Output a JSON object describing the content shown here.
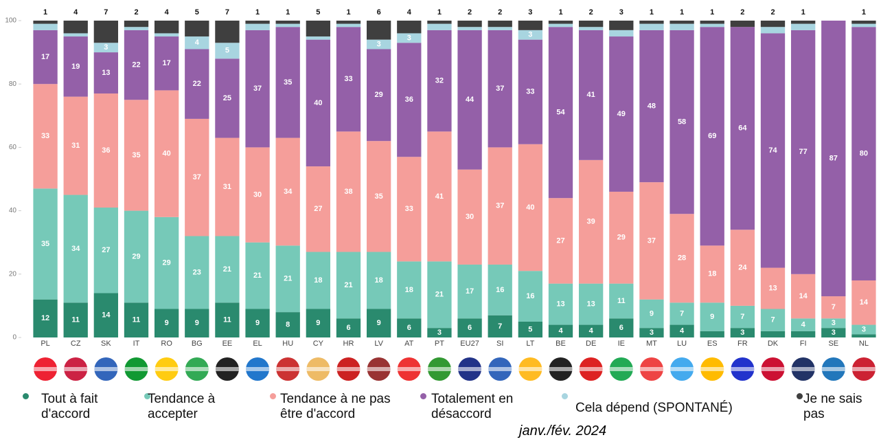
{
  "chart_data": {
    "type": "stacked_bar",
    "subtitle": "janv./fév. 2024",
    "categories": [
      "PL",
      "CZ",
      "SK",
      "IT",
      "RO",
      "BG",
      "EE",
      "EL",
      "HU",
      "CY",
      "HR",
      "LV",
      "AT",
      "PT",
      "EU27",
      "SI",
      "LT",
      "BE",
      "DE",
      "IE",
      "MT",
      "LU",
      "ES",
      "FR",
      "DK",
      "FI",
      "SE",
      "NL"
    ],
    "series": [
      {
        "name": "Tout à fait d'accord",
        "color": "#2a8a6e",
        "values": [
          12,
          11,
          14,
          11,
          9,
          9,
          11,
          9,
          8,
          9,
          6,
          9,
          6,
          3,
          6,
          7,
          5,
          4,
          4,
          6,
          3,
          4,
          2,
          3,
          2,
          2,
          3,
          1
        ]
      },
      {
        "name": "Tendance à accepter",
        "color": "#76c9b8",
        "values": [
          35,
          34,
          27,
          29,
          29,
          23,
          21,
          21,
          21,
          18,
          21,
          18,
          18,
          21,
          17,
          16,
          16,
          13,
          13,
          11,
          9,
          7,
          9,
          7,
          7,
          4,
          3,
          3
        ]
      },
      {
        "name": "Tendance à ne pas être d'accord",
        "color": "#f59e9a",
        "values": [
          33,
          31,
          36,
          35,
          40,
          37,
          31,
          30,
          34,
          27,
          38,
          35,
          33,
          41,
          30,
          37,
          40,
          27,
          39,
          29,
          37,
          28,
          18,
          24,
          13,
          14,
          7,
          14
        ]
      },
      {
        "name": "Totalement en désaccord",
        "color": "#9460a8",
        "values": [
          17,
          19,
          13,
          22,
          17,
          22,
          25,
          37,
          35,
          40,
          33,
          29,
          36,
          32,
          44,
          37,
          33,
          54,
          41,
          49,
          48,
          58,
          69,
          64,
          74,
          77,
          87,
          80
        ]
      },
      {
        "name": "Cela dépend (SPONTANÉ)",
        "color": "#a8d5e0",
        "values": [
          2,
          1,
          3,
          1,
          1,
          4,
          5,
          2,
          1,
          1,
          1,
          3,
          3,
          2,
          1,
          1,
          3,
          1,
          1,
          2,
          2,
          2,
          1,
          0,
          2,
          2,
          null,
          1
        ]
      },
      {
        "name": "Je ne sais pas",
        "color": "#3f3f3f",
        "values": [
          1,
          4,
          7,
          2,
          4,
          5,
          7,
          1,
          1,
          5,
          1,
          6,
          4,
          1,
          2,
          2,
          3,
          1,
          2,
          3,
          1,
          1,
          1,
          2,
          2,
          1,
          null,
          1
        ]
      }
    ],
    "ylim": [
      0,
      100
    ],
    "yticks": [
      0,
      20,
      40,
      60,
      80,
      100
    ],
    "grid": false
  }
}
